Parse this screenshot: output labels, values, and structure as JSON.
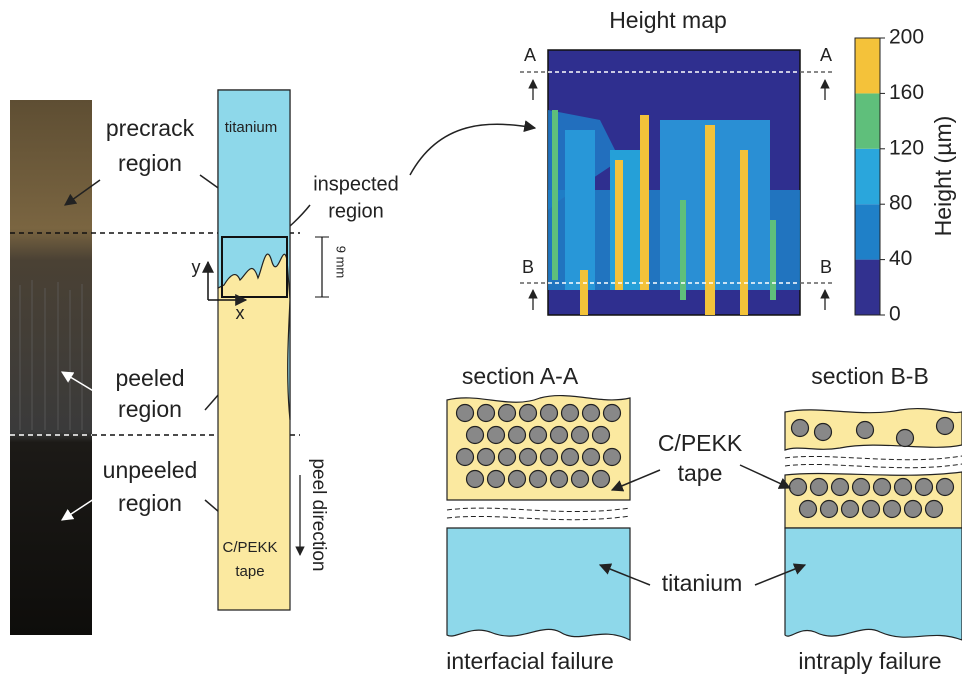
{
  "photo_labels": [
    "precrack",
    "region",
    "peeled",
    "region",
    "unpeeled",
    "region"
  ],
  "schematic": {
    "top_material": "titanium",
    "bottom_material": [
      "C/PEKK",
      "tape"
    ],
    "inspected": [
      "inspected",
      "region"
    ],
    "size": "9 mm",
    "y_axis": "y",
    "x_axis": "x",
    "peel": "peel direction"
  },
  "height_map": {
    "title": "Height map",
    "markers": [
      "A",
      "A",
      "B",
      "B"
    ],
    "colorbar": {
      "label": "Height (µm)",
      "ticks": [
        0,
        40,
        80,
        120,
        160,
        200
      ]
    }
  },
  "sections": [
    {
      "title": "section A-A",
      "caption": "interfacial failure"
    },
    {
      "title": "section B-B",
      "caption": "intraply failure"
    }
  ],
  "section_labels": {
    "tape": [
      "C/PEKK",
      "tape"
    ],
    "substrate": "titanium"
  }
}
